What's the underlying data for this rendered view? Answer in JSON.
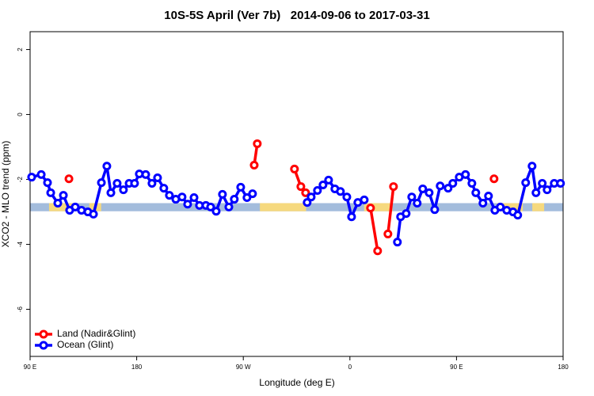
{
  "chart_data": {
    "type": "line",
    "title": "10S-5S April (Ver 7b)   2014-09-06 to 2017-03-31",
    "x_label": "Longitude (deg E)",
    "y_label": "XCO2 - MLO trend (ppm)",
    "xlim": [
      90,
      540
    ],
    "ylim": [
      -7.45,
      2.55
    ],
    "xticks": [
      {
        "value": 90,
        "label": "90 E"
      },
      180,
      {
        "value": 270,
        "label": "90 W"
      },
      {
        "value": 360,
        "label": "0"
      },
      {
        "value": 450,
        "label": "90 E"
      },
      {
        "value": 540,
        "label": "180"
      }
    ],
    "yticks": [
      2,
      0,
      -2,
      -4,
      -6
    ],
    "legend": "bottom-left",
    "band": {
      "ylim": [
        -2.98,
        -2.73
      ],
      "segments": [
        {
          "x": [
            90,
            540
          ],
          "color": "#a3bcdc"
        },
        {
          "x": [
            106,
            128
          ],
          "color": "#f6d97e"
        },
        {
          "x": [
            140,
            150
          ],
          "color": "#f6d97e"
        },
        {
          "x": [
            284,
            323
          ],
          "color": "#f6d97e"
        },
        {
          "x": [
            372,
            396
          ],
          "color": "#f6d97e"
        },
        {
          "x": [
            484,
            506
          ],
          "color": "#f6d97e"
        },
        {
          "x": [
            514,
            524
          ],
          "color": "#f6d97e"
        }
      ]
    },
    "series": [
      {
        "name": "Land (Nadir&Glint)",
        "color": "#ff0000",
        "x": [
          122.8,
          200,
          279.2,
          281.8,
          300,
          313.2,
          318.6,
          322.6,
          350,
          377.4,
          383.4,
          386,
          392.1,
          396.8,
          450,
          481.7
        ],
        "values": [
          -1.98,
          null,
          -1.56,
          -0.9,
          null,
          -1.68,
          -2.22,
          -2.41,
          null,
          -2.88,
          -4.2,
          null,
          -3.68,
          -2.22,
          null,
          -1.98
        ]
      },
      {
        "name": "Ocean (Glint)",
        "color": "#0000ff",
        "x": [
          91.3,
          99.4,
          104.7,
          107.4,
          113.4,
          118.1,
          123.4,
          128.1,
          133.4,
          138.8,
          143.5,
          150.2,
          154.8,
          158.2,
          163.5,
          168.8,
          173.6,
          178.2,
          182.2,
          187.6,
          192.9,
          197.6,
          202.9,
          207.6,
          213.0,
          218.3,
          223.0,
          228.4,
          233.0,
          238.4,
          242.4,
          247.1,
          252.4,
          257.8,
          262.4,
          267.8,
          273.1,
          277.8,
          300,
          323.9,
          327.3,
          332.6,
          337.3,
          342.0,
          347.3,
          352.0,
          357.4,
          361.4,
          366.7,
          372.1,
          386,
          400.1,
          402.8,
          407.5,
          412.2,
          416.8,
          421.5,
          426.9,
          431.6,
          436.2,
          442.9,
          446.9,
          452.3,
          457.6,
          463.0,
          466.3,
          472.3,
          477.0,
          482.4,
          487.0,
          492.4,
          497.7,
          501.7,
          508.4,
          513.8,
          517.1,
          522.4,
          526.5,
          532.5,
          537.8
        ],
        "values": [
          -1.93,
          -1.85,
          -2.1,
          -2.41,
          -2.73,
          -2.49,
          -2.95,
          -2.85,
          -2.95,
          -3.0,
          -3.07,
          -2.1,
          -1.59,
          -2.41,
          -2.12,
          -2.32,
          -2.12,
          -2.12,
          -1.83,
          -1.85,
          -2.12,
          -1.95,
          -2.27,
          -2.49,
          -2.61,
          -2.54,
          -2.76,
          -2.56,
          -2.8,
          -2.8,
          -2.85,
          -2.98,
          -2.46,
          -2.85,
          -2.61,
          -2.24,
          -2.56,
          -2.44,
          null,
          -2.71,
          -2.54,
          -2.34,
          -2.17,
          -2.02,
          -2.29,
          -2.37,
          -2.54,
          -3.15,
          -2.71,
          -2.63,
          null,
          -3.93,
          -3.15,
          -3.05,
          -2.54,
          -2.73,
          -2.29,
          -2.41,
          -2.93,
          -2.2,
          -2.27,
          -2.12,
          -1.93,
          -1.85,
          -2.12,
          -2.41,
          -2.73,
          -2.51,
          -2.95,
          -2.85,
          -2.95,
          -3.0,
          -3.1,
          -2.1,
          -1.59,
          -2.41,
          -2.12,
          -2.32,
          -2.12,
          -2.12
        ]
      }
    ]
  }
}
